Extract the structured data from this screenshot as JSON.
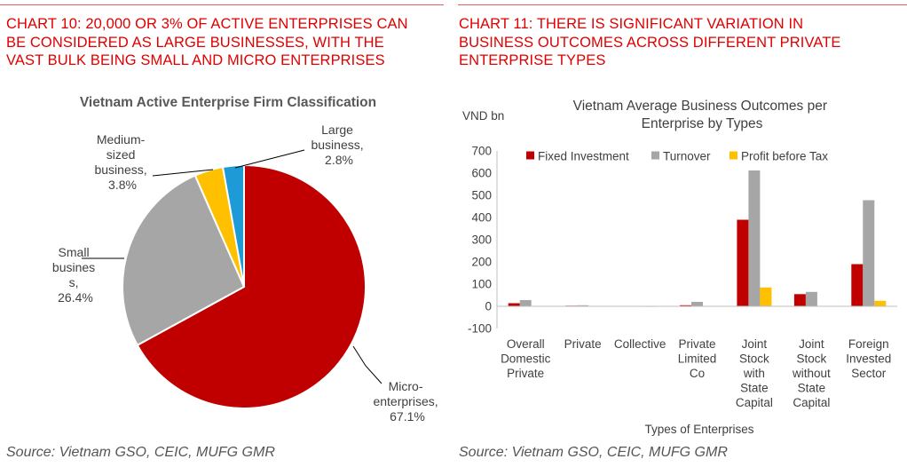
{
  "left_panel": {
    "heading_lines": [
      "CHART 10: 20,000 OR 3% OF ACTIVE ENTERPRISES CAN",
      "BE CONSIDERED AS LARGE BUSINESSES, WITH THE",
      "VAST BULK BEING SMALL AND MICRO ENTERPRISES"
    ],
    "source": "Source: Vietnam GSO, CEIC, MUFG GMR"
  },
  "right_panel": {
    "heading_lines": [
      "CHART 11: THERE IS SIGNIFICANT VARIATION IN",
      "BUSINESS OUTCOMES ACROSS DIFFERENT PRIVATE",
      "ENTERPRISE TYPES"
    ],
    "source": "Source: Vietnam GSO, CEIC, MUFG GMR"
  },
  "chart_data": [
    {
      "type": "pie",
      "title": "Vietnam Active Enterprise Firm Classification",
      "slices": [
        {
          "label_lines": [
            "Micro-",
            "enterprises,",
            "67.1%"
          ],
          "value": 67.1,
          "color": "#c00000"
        },
        {
          "label_lines": [
            "Small",
            "busines",
            "s,",
            "26.4%"
          ],
          "value": 26.4,
          "color": "#a6a6a6"
        },
        {
          "label_lines": [
            "Medium-",
            "sized",
            "business,",
            "3.8%"
          ],
          "value": 3.8,
          "color": "#ffc000"
        },
        {
          "label_lines": [
            "Large",
            "business,",
            "2.8%"
          ],
          "value": 2.8,
          "color": "#1e9ad6"
        }
      ]
    },
    {
      "type": "bar",
      "title_lines": [
        "Vietnam Average Business Outcomes per",
        "Enterprise by Types"
      ],
      "ylabel": "VND bn",
      "xlabel": "Types of Enterprises",
      "ylim": [
        -100,
        700
      ],
      "yticks": [
        "700",
        "600",
        "500",
        "400",
        "300",
        "200",
        "100",
        "0",
        "-100"
      ],
      "ytick_values": [
        700,
        600,
        500,
        400,
        300,
        200,
        100,
        0,
        -100
      ],
      "categories": [
        [
          "Overall",
          "Domestic",
          "Private"
        ],
        [
          "Private"
        ],
        [
          "Collective"
        ],
        [
          "Private",
          "Limited",
          "Co"
        ],
        [
          "Joint",
          "Stock",
          "with",
          "State",
          "Capital"
        ],
        [
          "Joint",
          "Stock",
          "without",
          "State",
          "Capital"
        ],
        [
          "Foreign",
          "Invested",
          "Sector"
        ]
      ],
      "series": [
        {
          "name": "Fixed Investment",
          "color": "#c00000",
          "values": [
            14,
            3,
            1,
            5,
            390,
            55,
            190
          ]
        },
        {
          "name": "Turnover",
          "color": "#a6a6a6",
          "values": [
            28,
            5,
            1,
            20,
            612,
            65,
            478
          ]
        },
        {
          "name": "Profit before Tax",
          "color": "#ffc000",
          "values": [
            1,
            0.3,
            0,
            0.5,
            85,
            2,
            25
          ]
        }
      ],
      "legend": "top"
    }
  ]
}
